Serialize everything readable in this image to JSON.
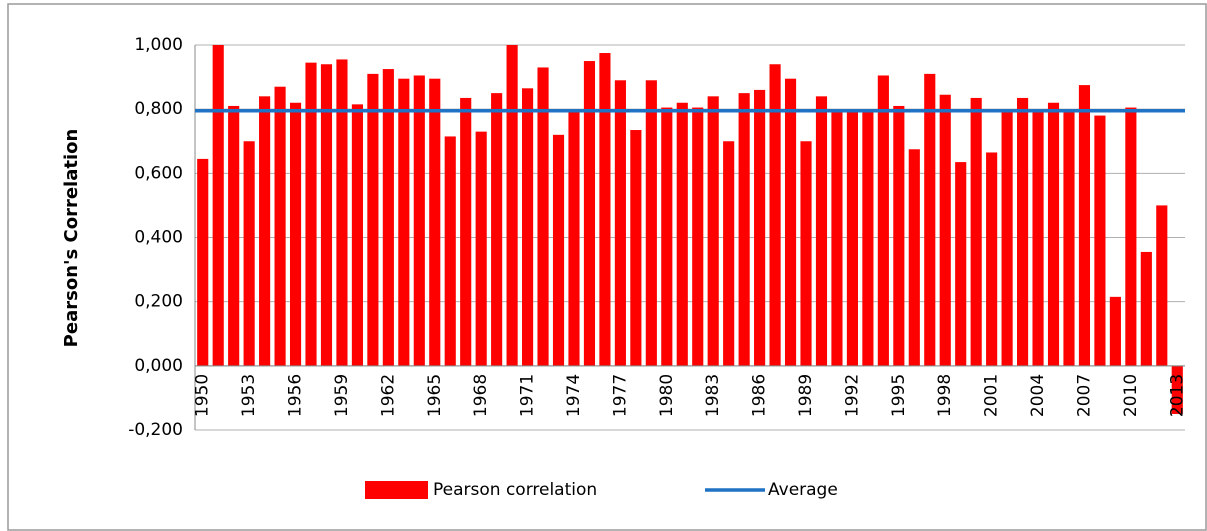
{
  "chart_data": {
    "type": "bar",
    "y_label": "Pearson's Correlation",
    "categories": [
      "1950",
      null,
      null,
      "1953",
      null,
      null,
      "1956",
      null,
      null,
      "1959",
      null,
      null,
      "1962",
      null,
      null,
      "1965",
      null,
      null,
      "1968",
      null,
      null,
      "1971",
      null,
      null,
      "1974",
      null,
      null,
      "1977",
      null,
      null,
      "1980",
      null,
      null,
      "1983",
      null,
      null,
      "1986",
      null,
      null,
      "1989",
      null,
      null,
      "1992",
      null,
      null,
      "1995",
      null,
      null,
      "1998",
      null,
      null,
      "2001",
      null,
      null,
      "2004",
      null,
      null,
      "2007",
      null,
      null,
      "2010",
      null,
      null,
      "2013"
    ],
    "series": [
      {
        "name": "Pearson correlation",
        "color": "#ff0000",
        "values": [
          0.645,
          1.0,
          0.81,
          0.7,
          0.84,
          0.87,
          0.82,
          0.945,
          0.94,
          0.955,
          0.815,
          0.91,
          0.925,
          0.895,
          0.905,
          0.895,
          0.715,
          0.835,
          0.73,
          0.85,
          1.0,
          0.865,
          0.93,
          0.72,
          0.795,
          0.95,
          0.975,
          0.89,
          0.735,
          0.89,
          0.805,
          0.82,
          0.805,
          0.84,
          0.7,
          0.85,
          0.86,
          0.94,
          0.895,
          0.7,
          0.84,
          0.795,
          0.795,
          0.795,
          0.905,
          0.81,
          0.675,
          0.91,
          0.845,
          0.635,
          0.835,
          0.665,
          0.795,
          0.835,
          0.795,
          0.82,
          0.795,
          0.875,
          0.78,
          0.215,
          0.805,
          0.355,
          0.5,
          -0.15
        ]
      }
    ],
    "average": {
      "name": "Average",
      "color": "#1f72c4",
      "value": 0.795
    },
    "ylim": [
      -0.2,
      1.0
    ],
    "yticks": [
      {
        "value": -0.2,
        "label": "-0,200"
      },
      {
        "value": 0,
        "label": "0,000"
      },
      {
        "value": 0.2,
        "label": "0,200"
      },
      {
        "value": 0.4,
        "label": "0,400"
      },
      {
        "value": 0.6,
        "label": "0,600"
      },
      {
        "value": 0.8,
        "label": "0,800"
      },
      {
        "value": 1.0,
        "label": "1,000"
      }
    ],
    "grid": true,
    "legend": "bottom"
  }
}
